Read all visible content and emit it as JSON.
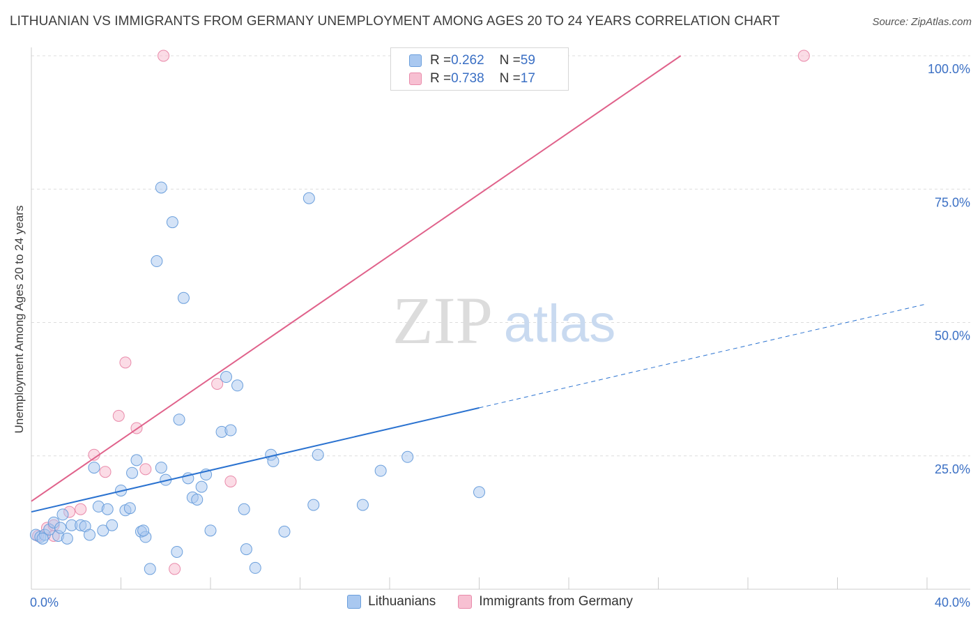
{
  "title": "LITHUANIAN VS IMMIGRANTS FROM GERMANY UNEMPLOYMENT AMONG AGES 20 TO 24 YEARS CORRELATION CHART",
  "source": "Source: ZipAtlas.com",
  "watermark": {
    "zip": "ZIP",
    "atlas": "atlas"
  },
  "legend": {
    "rows": [
      {
        "r_label": "R = ",
        "r_value": "0.262",
        "n_label": "N = ",
        "n_value": "59"
      },
      {
        "r_label": "R = ",
        "r_value": "0.738",
        "n_label": "N = ",
        "n_value": "17"
      }
    ]
  },
  "bottom_legend": {
    "series1": "Lithuanians",
    "series2": "Immigrants from Germany"
  },
  "chart_data": {
    "type": "scatter",
    "title": "LITHUANIAN VS IMMIGRANTS FROM GERMANY UNEMPLOYMENT AMONG AGES 20 TO 24 YEARS CORRELATION CHART",
    "xlabel": "",
    "ylabel": "Unemployment Among Ages 20 to 24 years",
    "xlim": [
      0,
      40
    ],
    "ylim": [
      0,
      100
    ],
    "x_tick_labels": [
      "0.0%",
      "40.0%"
    ],
    "y_ticks": [
      25,
      50,
      75,
      100
    ],
    "y_tick_labels": [
      "25.0%",
      "50.0%",
      "75.0%",
      "100.0%"
    ],
    "colors": {
      "lithuanians_fill": "#a9c8f0",
      "lithuanians_stroke": "#6b9fdc",
      "lithuanians_line": "#2a72d0",
      "germany_fill": "#f7c0d2",
      "germany_stroke": "#e98aaa",
      "germany_line": "#e0628b",
      "axis_label": "#3a6fc4"
    },
    "series": [
      {
        "name": "Lithuanians",
        "R": 0.262,
        "N": 59,
        "trend": {
          "x0": 0,
          "y0": 14.5,
          "x1": 20,
          "y1": 34.0,
          "dashed_to_x": 40,
          "dashed_to_y": 53.5
        },
        "points": [
          [
            0.2,
            10.2
          ],
          [
            0.4,
            9.8
          ],
          [
            0.6,
            10.2
          ],
          [
            0.8,
            11.2
          ],
          [
            1.0,
            12.5
          ],
          [
            1.2,
            10.0
          ],
          [
            1.4,
            14.0
          ],
          [
            1.6,
            9.5
          ],
          [
            1.8,
            12.0
          ],
          [
            2.2,
            12.0
          ],
          [
            2.4,
            11.8
          ],
          [
            2.8,
            22.8
          ],
          [
            3.0,
            15.5
          ],
          [
            3.2,
            11.0
          ],
          [
            3.6,
            12.0
          ],
          [
            4.0,
            18.5
          ],
          [
            4.2,
            14.8
          ],
          [
            4.4,
            15.2
          ],
          [
            4.5,
            21.8
          ],
          [
            4.7,
            24.2
          ],
          [
            4.9,
            10.8
          ],
          [
            5.1,
            9.8
          ],
          [
            5.3,
            3.8
          ],
          [
            5.6,
            61.5
          ],
          [
            5.8,
            22.8
          ],
          [
            5.8,
            75.3
          ],
          [
            6.0,
            20.5
          ],
          [
            6.3,
            68.8
          ],
          [
            6.5,
            7.0
          ],
          [
            6.6,
            31.8
          ],
          [
            6.8,
            54.6
          ],
          [
            7.0,
            20.8
          ],
          [
            7.2,
            17.2
          ],
          [
            7.4,
            16.8
          ],
          [
            7.6,
            19.2
          ],
          [
            7.8,
            21.5
          ],
          [
            8.0,
            11.0
          ],
          [
            8.5,
            29.5
          ],
          [
            8.7,
            39.8
          ],
          [
            8.9,
            29.8
          ],
          [
            9.2,
            38.2
          ],
          [
            9.5,
            15.0
          ],
          [
            9.6,
            7.5
          ],
          [
            10.0,
            4.0
          ],
          [
            10.7,
            25.2
          ],
          [
            10.8,
            24.0
          ],
          [
            11.3,
            10.8
          ],
          [
            12.4,
            73.3
          ],
          [
            12.6,
            15.8
          ],
          [
            12.8,
            25.2
          ],
          [
            14.8,
            15.8
          ],
          [
            15.6,
            22.2
          ],
          [
            16.8,
            24.8
          ],
          [
            20.0,
            18.2
          ],
          [
            3.4,
            15.0
          ],
          [
            0.5,
            9.5
          ],
          [
            1.3,
            11.5
          ],
          [
            2.6,
            10.2
          ],
          [
            5.0,
            11.0
          ]
        ]
      },
      {
        "name": "Immigrants from Germany",
        "R": 0.738,
        "N": 17,
        "trend": {
          "x0": 0,
          "y0": 16.5,
          "x1": 29.0,
          "y1": 100.0
        },
        "points": [
          [
            0.3,
            10.0
          ],
          [
            0.7,
            11.5
          ],
          [
            1.0,
            10.0
          ],
          [
            1.7,
            14.5
          ],
          [
            2.2,
            15.0
          ],
          [
            2.8,
            25.2
          ],
          [
            3.3,
            22.0
          ],
          [
            3.9,
            32.5
          ],
          [
            4.2,
            42.5
          ],
          [
            4.7,
            30.2
          ],
          [
            5.1,
            22.5
          ],
          [
            5.9,
            100.0
          ],
          [
            6.4,
            3.8
          ],
          [
            8.3,
            38.5
          ],
          [
            8.9,
            20.2
          ],
          [
            34.5,
            100.0
          ],
          [
            1.0,
            12.0
          ]
        ]
      }
    ]
  }
}
